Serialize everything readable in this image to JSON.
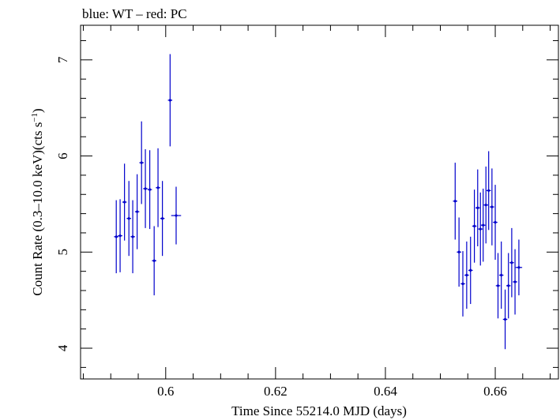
{
  "chart_data": {
    "type": "scatter",
    "title": "blue: WT – red: PC",
    "xlabel": "Time Since 55214.0 MJD (days)",
    "ylabel_main": "Count Rate (0.3–10.0 keV)(cts s",
    "ylabel_sup": "−1",
    "ylabel_close": ")",
    "xlim": [
      0.5845,
      0.6715
    ],
    "ylim": [
      3.68,
      7.36
    ],
    "xticks_major": [
      0.6,
      0.62,
      0.64,
      0.66
    ],
    "xtick_labels": [
      "0.6",
      "0.62",
      "0.64",
      "0.66"
    ],
    "xticks_minor_step": 0.005,
    "yticks_major": [
      4,
      5,
      6,
      7
    ],
    "ytick_labels": [
      "4",
      "5",
      "6",
      "7"
    ],
    "yticks_minor_step": 0.2,
    "grid": false,
    "legend": "none",
    "colors": {
      "wt": "#0000cc",
      "axes": "#000000"
    },
    "series": [
      {
        "name": "WT",
        "color": "#0000cc",
        "points": [
          {
            "x": 0.591,
            "y": 5.16,
            "yerr": 0.38,
            "xerr": 0.0004
          },
          {
            "x": 0.5917,
            "y": 5.17,
            "yerr": 0.38,
            "xerr": 0.0004
          },
          {
            "x": 0.5925,
            "y": 5.52,
            "yerr": 0.4,
            "xerr": 0.0004
          },
          {
            "x": 0.5933,
            "y": 5.35,
            "yerr": 0.39,
            "xerr": 0.0004
          },
          {
            "x": 0.594,
            "y": 5.16,
            "yerr": 0.38,
            "xerr": 0.0004
          },
          {
            "x": 0.5948,
            "y": 5.42,
            "yerr": 0.39,
            "xerr": 0.0004
          },
          {
            "x": 0.5956,
            "y": 5.93,
            "yerr": 0.43,
            "xerr": 0.0004
          },
          {
            "x": 0.5963,
            "y": 5.66,
            "yerr": 0.41,
            "xerr": 0.0004
          },
          {
            "x": 0.5971,
            "y": 5.65,
            "yerr": 0.41,
            "xerr": 0.0004
          },
          {
            "x": 0.5979,
            "y": 4.91,
            "yerr": 0.36,
            "xerr": 0.0004
          },
          {
            "x": 0.5986,
            "y": 5.67,
            "yerr": 0.41,
            "xerr": 0.0004
          },
          {
            "x": 0.5994,
            "y": 5.35,
            "yerr": 0.39,
            "xerr": 0.0004
          },
          {
            "x": 0.6008,
            "y": 6.58,
            "yerr": 0.48,
            "xerr": 0.0004
          },
          {
            "x": 0.6019,
            "y": 5.38,
            "yerr": 0.3,
            "xerr": 0.0009
          },
          {
            "x": 0.6527,
            "y": 5.53,
            "yerr": 0.4,
            "xerr": 0.0004
          },
          {
            "x": 0.6534,
            "y": 5.0,
            "yerr": 0.36,
            "xerr": 0.0004
          },
          {
            "x": 0.6541,
            "y": 4.67,
            "yerr": 0.34,
            "xerr": 0.0004
          },
          {
            "x": 0.6548,
            "y": 4.76,
            "yerr": 0.35,
            "xerr": 0.0004
          },
          {
            "x": 0.6555,
            "y": 4.81,
            "yerr": 0.35,
            "xerr": 0.0004
          },
          {
            "x": 0.6562,
            "y": 5.27,
            "yerr": 0.38,
            "xerr": 0.0004
          },
          {
            "x": 0.6568,
            "y": 5.46,
            "yerr": 0.4,
            "xerr": 0.0004
          },
          {
            "x": 0.6573,
            "y": 5.24,
            "yerr": 0.38,
            "xerr": 0.0004
          },
          {
            "x": 0.6578,
            "y": 5.28,
            "yerr": 0.38,
            "xerr": 0.0004
          },
          {
            "x": 0.6583,
            "y": 5.49,
            "yerr": 0.4,
            "xerr": 0.0004
          },
          {
            "x": 0.6588,
            "y": 5.64,
            "yerr": 0.41,
            "xerr": 0.0004
          },
          {
            "x": 0.6594,
            "y": 5.47,
            "yerr": 0.4,
            "xerr": 0.0004
          },
          {
            "x": 0.66,
            "y": 5.31,
            "yerr": 0.39,
            "xerr": 0.0004
          },
          {
            "x": 0.6605,
            "y": 4.65,
            "yerr": 0.34,
            "xerr": 0.0004
          },
          {
            "x": 0.6611,
            "y": 4.76,
            "yerr": 0.35,
            "xerr": 0.0004
          },
          {
            "x": 0.6618,
            "y": 4.3,
            "yerr": 0.31,
            "xerr": 0.0004
          },
          {
            "x": 0.6624,
            "y": 4.65,
            "yerr": 0.34,
            "xerr": 0.0004
          },
          {
            "x": 0.663,
            "y": 4.89,
            "yerr": 0.36,
            "xerr": 0.0004
          },
          {
            "x": 0.6636,
            "y": 4.69,
            "yerr": 0.34,
            "xerr": 0.0004
          },
          {
            "x": 0.6643,
            "y": 4.84,
            "yerr": 0.29,
            "xerr": 0.0006
          }
        ]
      }
    ]
  }
}
